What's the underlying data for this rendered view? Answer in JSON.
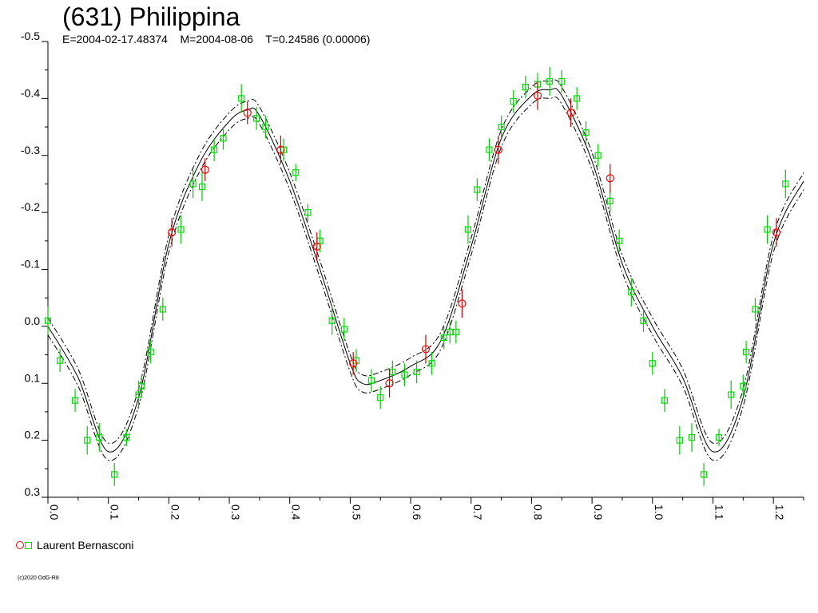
{
  "title": "(631) Philippina",
  "subtitle": "E=2004-02-17.48374    M=2004-08-06    T=0.24586 (0.00006)",
  "legend": {
    "label": "Laurent Bernasconi"
  },
  "copyright": "(c)2020 OdG-R8",
  "colors": {
    "circle": "#ff0000",
    "square": "#00dd00",
    "errorbar_circle": "#cc0000",
    "errorbar_square": "#00cc00",
    "curve": "#000000"
  },
  "chart_data": {
    "type": "scatter",
    "title": "(631) Philippina",
    "xlabel": "",
    "ylabel": "",
    "xlim": [
      0.0,
      1.25
    ],
    "ylim": [
      -0.5,
      0.3
    ],
    "y_inverted": true,
    "x_tick_labels": [
      "0.0",
      "0.1",
      "0.2",
      "0.3",
      "0.4",
      "0.5",
      "0.6",
      "0.7",
      "0.8",
      "0.9",
      "1.0",
      "1.1",
      "1.2"
    ],
    "y_tick_labels": [
      "-0.5",
      "-0.4",
      "-0.3",
      "-0.2",
      "-0.1",
      "0.0",
      "0.1",
      "0.2",
      "0.3"
    ],
    "fit_curve": {
      "x": [
        0.0,
        0.05,
        0.1,
        0.15,
        0.2,
        0.25,
        0.3,
        0.33,
        0.35,
        0.4,
        0.45,
        0.5,
        0.52,
        0.55,
        0.6,
        0.65,
        0.7,
        0.75,
        0.8,
        0.83,
        0.85,
        0.9,
        0.95,
        1.0,
        1.05,
        1.1,
        1.15,
        1.2,
        1.25
      ],
      "y": [
        0.0,
        0.09,
        0.22,
        0.125,
        -0.145,
        -0.285,
        -0.36,
        -0.38,
        -0.37,
        -0.255,
        -0.1,
        0.065,
        0.1,
        0.095,
        0.07,
        0.025,
        -0.14,
        -0.33,
        -0.405,
        -0.415,
        -0.405,
        -0.29,
        -0.11,
        0.0,
        0.09,
        0.22,
        0.125,
        -0.145,
        -0.255
      ],
      "band": 0.015
    },
    "series": [
      {
        "name": "Laurent Bernasconi",
        "marker": "circle",
        "color": "#ff0000",
        "x": [
          0.205,
          0.26,
          0.33,
          0.385,
          0.445,
          0.505,
          0.565,
          0.625,
          0.685,
          0.745,
          0.81,
          0.865,
          0.93,
          1.205
        ],
        "y": [
          -0.165,
          -0.275,
          -0.375,
          -0.31,
          -0.14,
          0.065,
          0.1,
          0.04,
          -0.04,
          -0.31,
          -0.405,
          -0.375,
          -0.26,
          -0.165
        ],
        "err": [
          0.025,
          0.02,
          0.02,
          0.025,
          0.025,
          0.02,
          0.025,
          0.025,
          0.025,
          0.025,
          0.025,
          0.025,
          0.025,
          0.025
        ]
      },
      {
        "name": "Laurent Bernasconi",
        "marker": "square",
        "color": "#00dd00",
        "x": [
          0.0,
          0.02,
          0.045,
          0.065,
          0.085,
          0.11,
          0.13,
          0.15,
          0.155,
          0.17,
          0.19,
          0.22,
          0.24,
          0.255,
          0.275,
          0.29,
          0.32,
          0.345,
          0.36,
          0.39,
          0.41,
          0.43,
          0.45,
          0.47,
          0.49,
          0.51,
          0.535,
          0.55,
          0.57,
          0.59,
          0.61,
          0.635,
          0.655,
          0.665,
          0.675,
          0.695,
          0.71,
          0.73,
          0.75,
          0.77,
          0.79,
          0.81,
          0.83,
          0.85,
          0.875,
          0.89,
          0.91,
          0.93,
          0.945,
          0.965,
          0.985,
          1.0,
          1.02,
          1.045,
          1.065,
          1.085,
          1.11,
          1.13,
          1.15,
          1.155,
          1.17,
          1.19,
          1.22
        ],
        "y": [
          -0.01,
          0.06,
          0.13,
          0.2,
          0.195,
          0.26,
          0.195,
          0.12,
          0.105,
          0.045,
          -0.03,
          -0.17,
          -0.25,
          -0.245,
          -0.31,
          -0.33,
          -0.4,
          -0.365,
          -0.35,
          -0.31,
          -0.27,
          -0.2,
          -0.15,
          -0.01,
          0.005,
          0.06,
          0.095,
          0.125,
          0.08,
          0.085,
          0.08,
          0.065,
          0.02,
          0.01,
          0.01,
          -0.17,
          -0.24,
          -0.31,
          -0.35,
          -0.395,
          -0.42,
          -0.425,
          -0.43,
          -0.43,
          -0.4,
          -0.34,
          -0.3,
          -0.22,
          -0.15,
          -0.06,
          -0.01,
          0.065,
          0.13,
          0.2,
          0.195,
          0.26,
          0.195,
          0.12,
          0.105,
          0.045,
          -0.03,
          -0.17,
          -0.25
        ],
        "err": [
          0.025,
          0.02,
          0.02,
          0.025,
          0.025,
          0.02,
          0.015,
          0.025,
          0.02,
          0.02,
          0.02,
          0.025,
          0.025,
          0.025,
          0.02,
          0.02,
          0.025,
          0.02,
          0.02,
          0.02,
          0.015,
          0.015,
          0.02,
          0.025,
          0.02,
          0.02,
          0.02,
          0.02,
          0.02,
          0.02,
          0.02,
          0.02,
          0.02,
          0.02,
          0.02,
          0.025,
          0.02,
          0.02,
          0.02,
          0.02,
          0.02,
          0.02,
          0.025,
          0.02,
          0.02,
          0.02,
          0.02,
          0.02,
          0.02,
          0.025,
          0.02,
          0.02,
          0.02,
          0.025,
          0.025,
          0.02,
          0.015,
          0.025,
          0.02,
          0.02,
          0.02,
          0.025,
          0.025
        ]
      }
    ]
  }
}
